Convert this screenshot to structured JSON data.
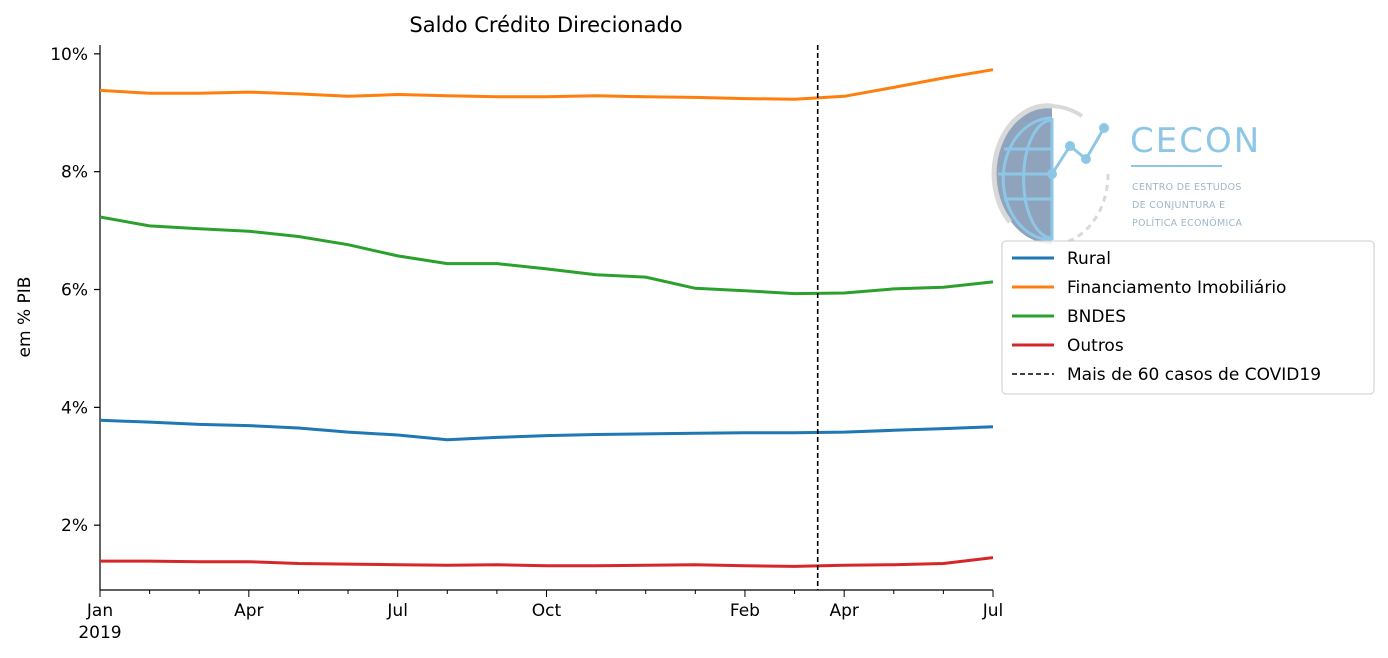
{
  "chart_data": {
    "type": "line",
    "title": "Saldo Crédito Direcionado",
    "ylabel": "em % PIB",
    "xlabel": "",
    "x": [
      "2019-01",
      "2019-02",
      "2019-03",
      "2019-04",
      "2019-05",
      "2019-06",
      "2019-07",
      "2019-08",
      "2019-09",
      "2019-10",
      "2019-11",
      "2019-12",
      "2020-01",
      "2020-02",
      "2020-03",
      "2020-04",
      "2020-05",
      "2020-06",
      "2020-07"
    ],
    "x_ticks": [
      {
        "x": "2019-01",
        "label": "Jan",
        "sublabel": "2019"
      },
      {
        "x": "2019-04",
        "label": "Apr"
      },
      {
        "x": "2019-07",
        "label": "Jul"
      },
      {
        "x": "2019-10",
        "label": "Oct"
      },
      {
        "x": "2020-02",
        "label": "Feb"
      },
      {
        "x": "2020-04",
        "label": "Apr"
      },
      {
        "x": "2020-07",
        "label": "Jul"
      }
    ],
    "ylim": [
      0.9,
      10.15
    ],
    "y_ticks": [
      {
        "value": 2,
        "label": "2%"
      },
      {
        "value": 4,
        "label": "4%"
      },
      {
        "value": 6,
        "label": "6%"
      },
      {
        "value": 8,
        "label": "8%"
      },
      {
        "value": 10,
        "label": "10%"
      }
    ],
    "series": [
      {
        "name": "Rural",
        "color": "#1f77b4",
        "values": [
          3.78,
          3.75,
          3.71,
          3.69,
          3.65,
          3.58,
          3.53,
          3.45,
          3.49,
          3.52,
          3.54,
          3.55,
          3.56,
          3.57,
          3.57,
          3.58,
          3.61,
          3.64,
          3.67
        ]
      },
      {
        "name": "Financiamento Imobiliário",
        "color": "#ff7f0e",
        "values": [
          9.38,
          9.33,
          9.33,
          9.35,
          9.32,
          9.28,
          9.31,
          9.29,
          9.27,
          9.27,
          9.29,
          9.27,
          9.26,
          9.24,
          9.23,
          9.28,
          9.43,
          9.59,
          9.73
        ]
      },
      {
        "name": "BNDES",
        "color": "#2ca02c",
        "values": [
          7.23,
          7.08,
          7.03,
          6.99,
          6.9,
          6.76,
          6.57,
          6.44,
          6.44,
          6.35,
          6.25,
          6.21,
          6.02,
          5.98,
          5.93,
          5.94,
          6.01,
          6.04,
          6.13
        ]
      },
      {
        "name": "Outros",
        "color": "#d62728",
        "values": [
          1.39,
          1.39,
          1.38,
          1.38,
          1.35,
          1.34,
          1.33,
          1.32,
          1.33,
          1.31,
          1.31,
          1.32,
          1.33,
          1.31,
          1.3,
          1.32,
          1.33,
          1.35,
          1.45
        ]
      }
    ],
    "vline": {
      "x": "2020-03-15",
      "label": "Mais de 60 casos de COVID19",
      "color": "#000000",
      "style": "dashed"
    },
    "legend": {
      "placement": "right"
    },
    "grid": false
  },
  "logo": {
    "title": "CECON",
    "subtitle_lines": [
      "CENTRO DE ESTUDOS",
      "DE CONJUNTURA E",
      "POLÍTICA ECONÔMICA"
    ],
    "color": "#8ec7e6"
  }
}
